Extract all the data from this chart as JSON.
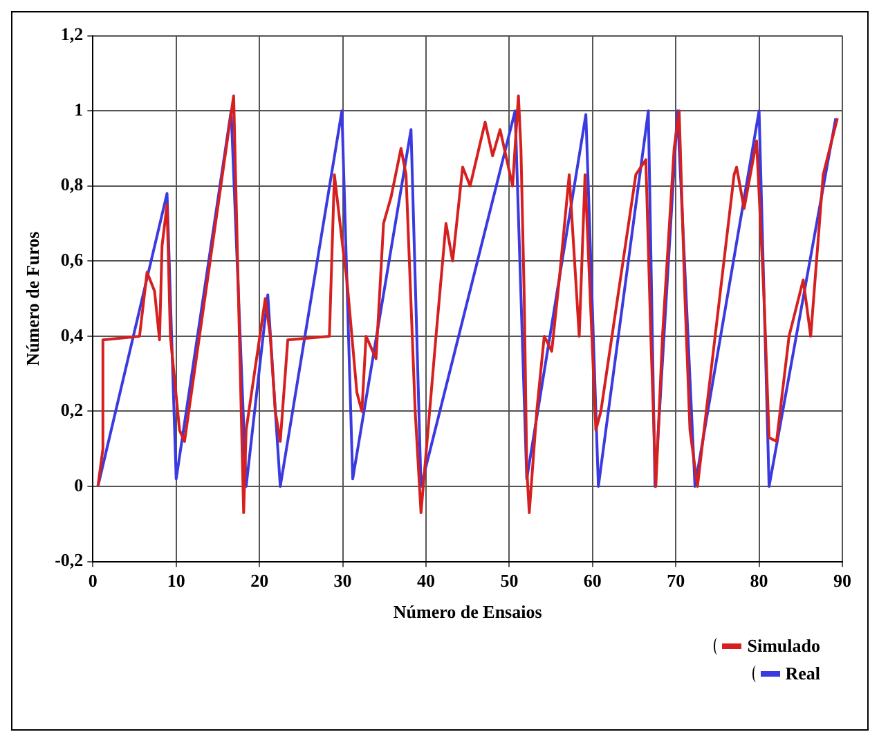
{
  "chart_data": {
    "type": "line",
    "xlabel": "Número de Ensaios",
    "ylabel": "Número de Furos",
    "xlim": [
      0,
      90
    ],
    "xticks": [
      0,
      10,
      20,
      30,
      40,
      50,
      60,
      70,
      80,
      90
    ],
    "ylim": [
      -0.2,
      1.2
    ],
    "yticks": [
      {
        "value": -0.2,
        "label": "-0,2"
      },
      0,
      {
        "value": 0.2,
        "label": "0,2"
      },
      {
        "value": 0.4,
        "label": "0,4"
      },
      {
        "value": 0.6,
        "label": "0,6"
      },
      {
        "value": 0.8,
        "label": "0,8"
      },
      1,
      {
        "value": 1.2,
        "label": "1,2"
      }
    ],
    "grid": true,
    "legend": "bottom right",
    "line_style": "solid",
    "marker": "none",
    "series": [
      {
        "name": "Simulado",
        "color": "#d62020",
        "x": [
          0.6,
          1.2,
          1.2,
          5.6,
          6.5,
          7.4,
          8.0,
          8.3,
          8.9,
          9.3,
          10.4,
          11,
          16.9,
          18.1,
          18.4,
          20.7,
          21.3,
          21.9,
          22.5,
          23.4,
          28.4,
          29,
          30.2,
          30.5,
          31.7,
          32.3,
          32.8,
          34,
          34.9,
          35.8,
          37.0,
          37.6,
          38.7,
          39.4,
          41.2,
          42.4,
          43.2,
          44.4,
          45.3,
          47.1,
          48,
          48.9,
          50.4,
          51.1,
          51.4,
          51.8,
          52.1,
          52.4,
          53.3,
          54.2,
          55.1,
          56,
          57.2,
          58.4,
          59.1,
          60.4,
          61,
          65.2,
          66.4,
          67,
          67.6,
          68.4,
          69.8,
          70.4,
          71.1,
          71.7,
          72.6,
          77,
          77.3,
          78.2,
          79.7,
          80.6,
          81.2,
          82.1,
          83.6,
          85.3,
          86.2,
          87.7,
          89.4
        ],
        "values": [
          0,
          0.1,
          0.39,
          0.4,
          0.57,
          0.52,
          0.39,
          0.64,
          0.75,
          0.4,
          0.15,
          0.12,
          1.04,
          -0.07,
          0.15,
          0.5,
          0.4,
          0.2,
          0.12,
          0.39,
          0.4,
          0.83,
          0.6,
          0.55,
          0.25,
          0.2,
          0.4,
          0.34,
          0.7,
          0.77,
          0.9,
          0.83,
          0.2,
          -0.07,
          0.4,
          0.7,
          0.6,
          0.85,
          0.8,
          0.97,
          0.88,
          0.95,
          0.8,
          1.04,
          0.9,
          0.5,
          0.05,
          -0.07,
          0.2,
          0.4,
          0.36,
          0.55,
          0.83,
          0.4,
          0.83,
          0.15,
          0.2,
          0.83,
          0.87,
          0.4,
          0,
          0.4,
          0.9,
          1.0,
          0.5,
          0.15,
          0,
          0.83,
          0.85,
          0.74,
          0.92,
          0.5,
          0.13,
          0.12,
          0.4,
          0.55,
          0.4,
          0.83,
          0.98
        ]
      },
      {
        "name": "Real",
        "color": "#3a3ae0",
        "x": [
          0.6,
          8.9,
          10,
          16.6,
          18.4,
          21,
          22.5,
          29.9,
          31.2,
          38.2,
          39.4,
          50.7,
          52.1,
          59.2,
          60.7,
          66.7,
          67.5,
          70.2,
          72.3,
          80,
          81.2,
          89.2
        ],
        "values": [
          0,
          0.78,
          0.02,
          1.0,
          0,
          0.51,
          0,
          1.0,
          0.02,
          0.95,
          0,
          1.0,
          0.02,
          0.99,
          0,
          1.0,
          0,
          1.0,
          0,
          1.0,
          0,
          0.98
        ]
      }
    ]
  }
}
